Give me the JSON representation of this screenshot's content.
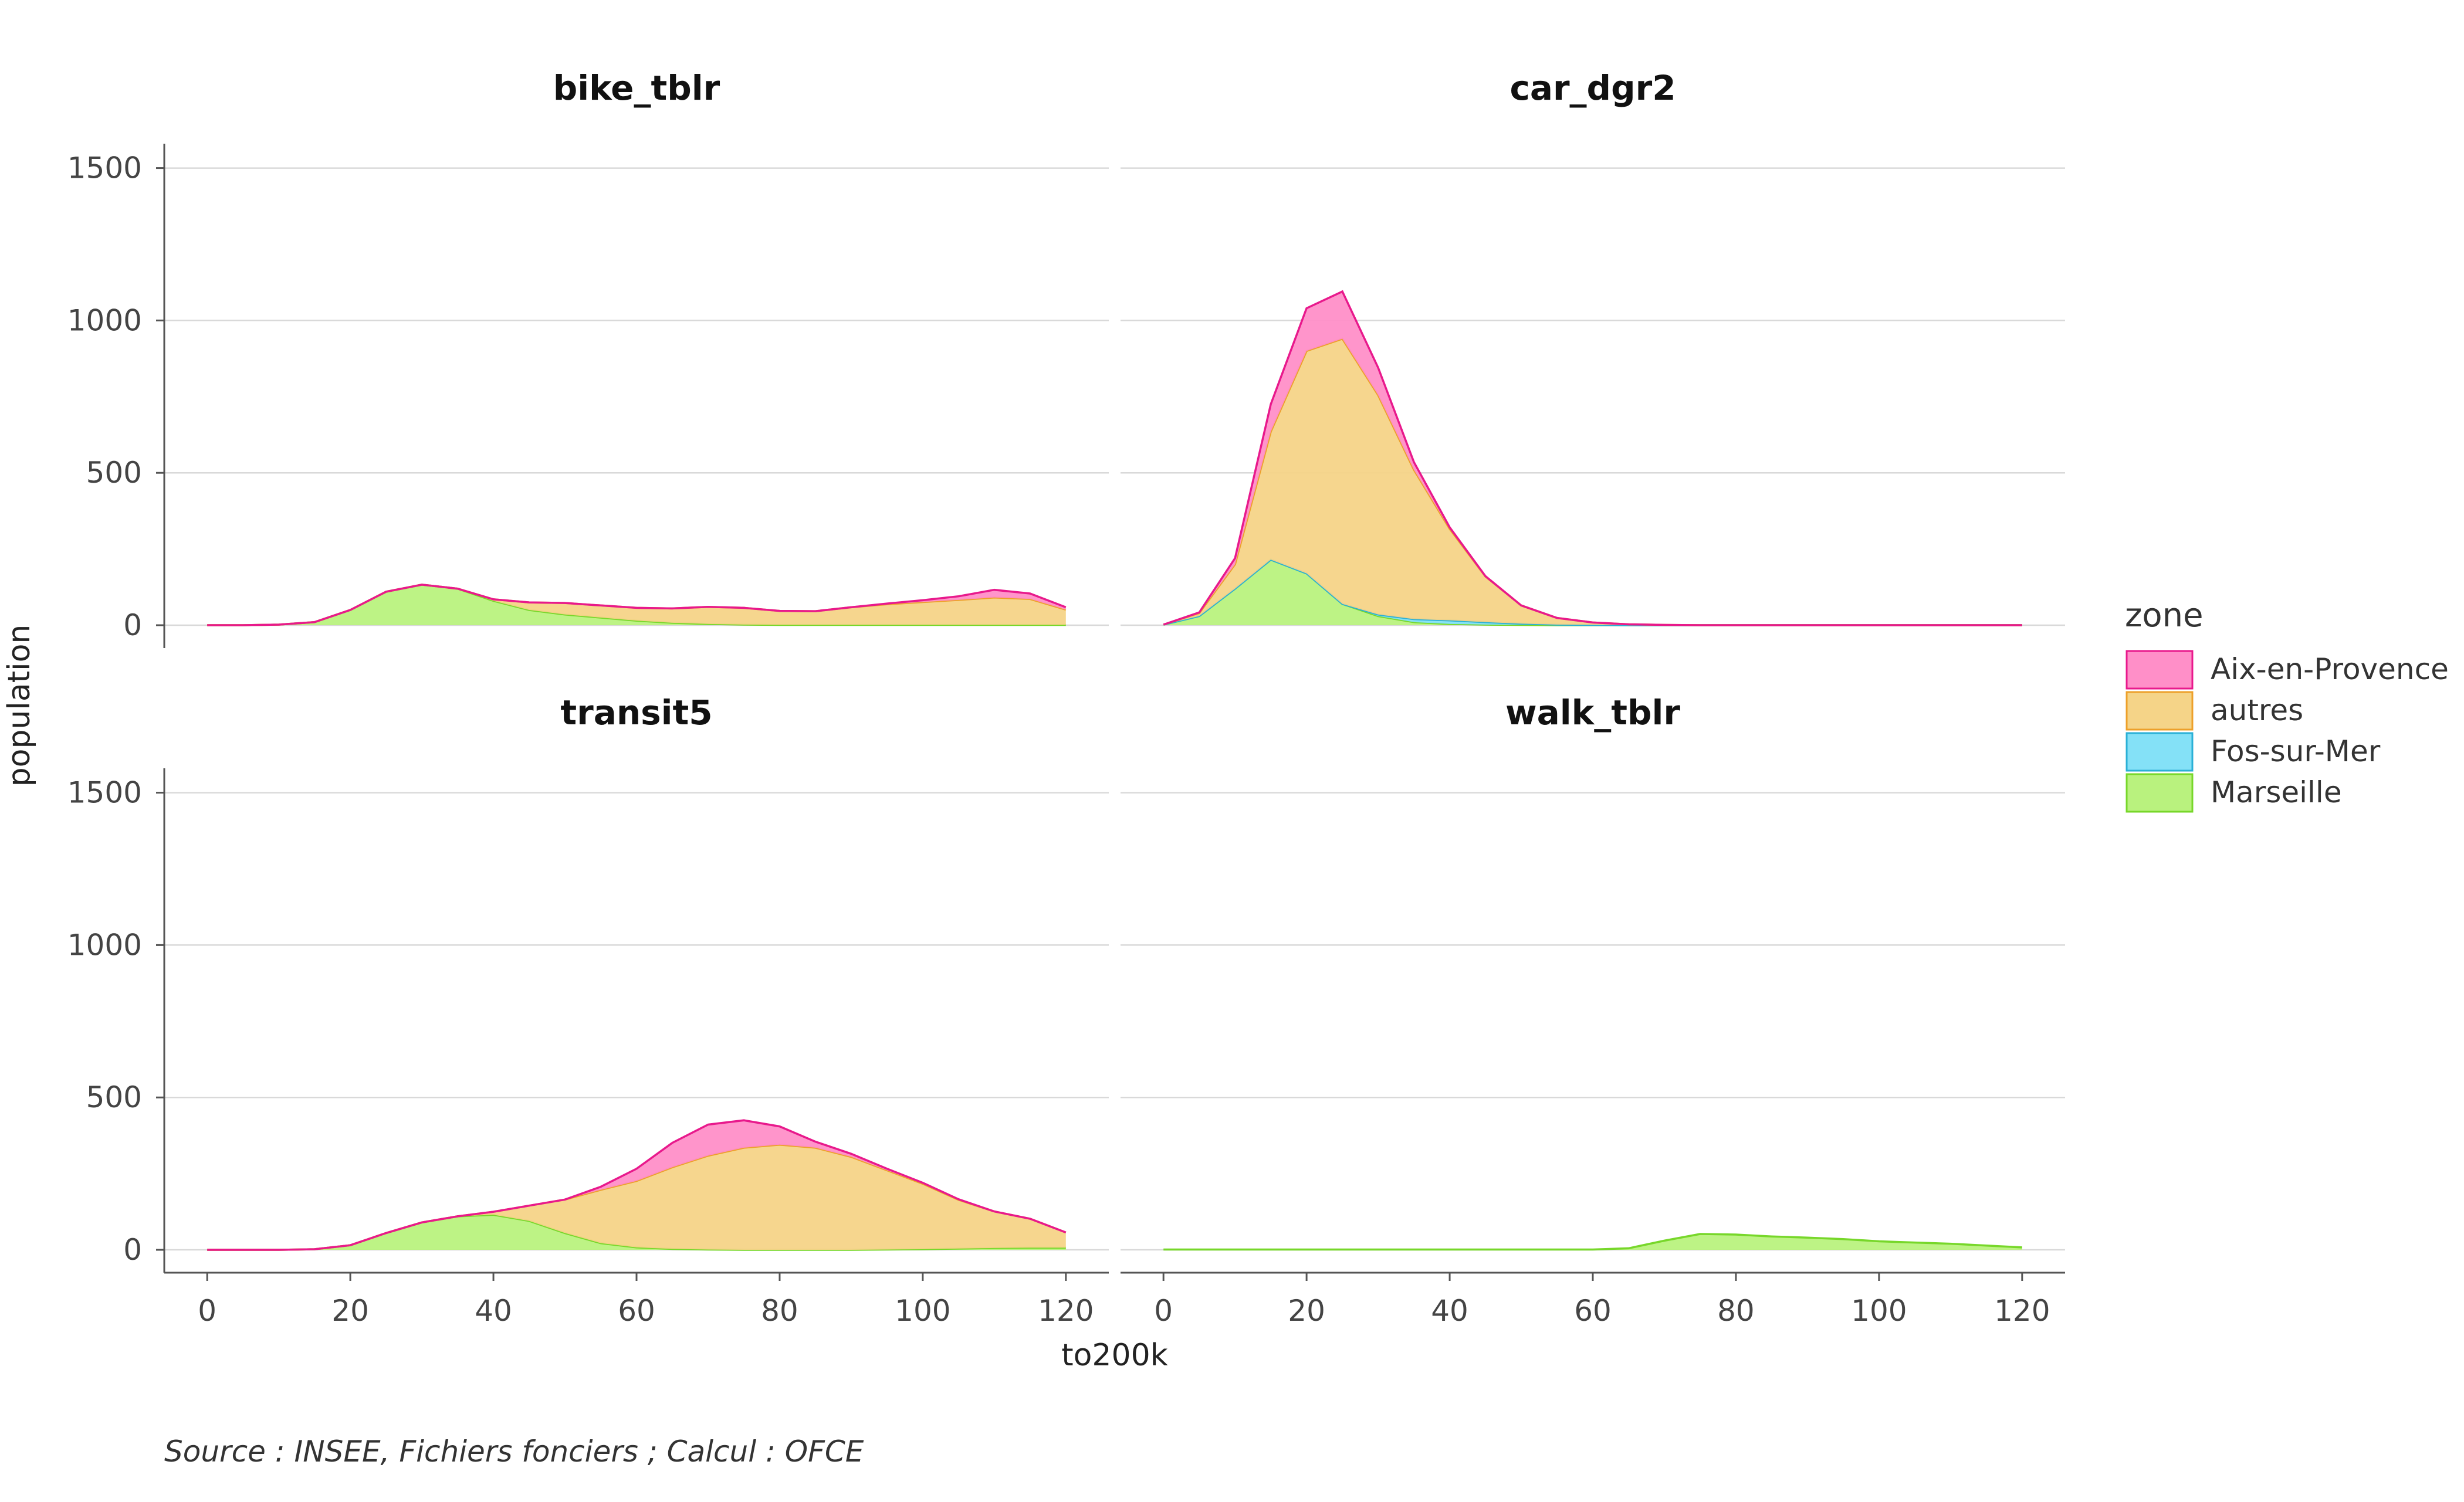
{
  "chart_data": {
    "type": "area",
    "stacked": true,
    "x_label": "to200k",
    "y_label": "population",
    "caption": "Source : INSEE, Fichiers fonciers ; Calcul : OFCE",
    "x_ticks": [
      0,
      20,
      40,
      60,
      80,
      100,
      120
    ],
    "y_ticks": [
      0,
      500,
      1000,
      1500
    ],
    "xlim": [
      -6,
      126
    ],
    "ylim": [
      -75,
      1580
    ],
    "grid": true,
    "legend": {
      "title": "zone",
      "position": "right",
      "entries": [
        {
          "name": "Aix-en-Provence",
          "fill": "#ff8fc8",
          "stroke": "#e8198c"
        },
        {
          "name": "autres",
          "fill": "#f5d488",
          "stroke": "#eda02a"
        },
        {
          "name": "Fos-sur-Mer",
          "fill": "#84e1f7",
          "stroke": "#2ab0d6"
        },
        {
          "name": "Marseille",
          "fill": "#b9f27e",
          "stroke": "#77d72a"
        }
      ]
    },
    "stack_order": [
      "Marseille",
      "Fos-sur-Mer",
      "autres",
      "Aix-en-Provence"
    ],
    "x": [
      0,
      5,
      10,
      15,
      20,
      25,
      30,
      35,
      40,
      45,
      50,
      55,
      60,
      65,
      70,
      75,
      80,
      85,
      90,
      95,
      100,
      105,
      110,
      115,
      120
    ],
    "panels": [
      {
        "title": "bike_tblr",
        "series": [
          {
            "name": "Marseille",
            "values": [
              0,
              0,
              2,
              10,
              50,
              110,
              133,
              120,
              80,
              50,
              35,
              25,
              15,
              8,
              4,
              2,
              1,
              1,
              1,
              1,
              1,
              1,
              1,
              1,
              1
            ]
          },
          {
            "name": "Fos-sur-Mer",
            "values": [
              0,
              0,
              0,
              0,
              0,
              0,
              0,
              0,
              0,
              0,
              0,
              0,
              0,
              0,
              0,
              0,
              0,
              0,
              0,
              0,
              0,
              0,
              0,
              0,
              0
            ]
          },
          {
            "name": "autres",
            "values": [
              0,
              0,
              0,
              0,
              0,
              0,
              0,
              0,
              5,
              25,
              38,
              40,
              42,
              47,
              56,
              55,
              46,
              45,
              58,
              68,
              75,
              82,
              90,
              85,
              50
            ]
          },
          {
            "name": "Aix-en-Provence",
            "values": [
              0,
              0,
              0,
              0,
              0,
              0,
              0,
              0,
              0,
              0,
              0,
              0,
              0,
              0,
              0,
              0,
              0,
              0,
              0,
              2,
              6,
              12,
              25,
              18,
              8
            ]
          }
        ]
      },
      {
        "title": "car_dgr2",
        "series": [
          {
            "name": "Marseille",
            "values": [
              2,
              30,
              120,
              215,
              170,
              70,
              30,
              10,
              4,
              2,
              1,
              0,
              0,
              0,
              0,
              0,
              0,
              0,
              0,
              0,
              0,
              0,
              0,
              0,
              0
            ]
          },
          {
            "name": "Fos-sur-Mer",
            "values": [
              0,
              0,
              0,
              0,
              0,
              0,
              5,
              10,
              12,
              8,
              4,
              2,
              1,
              0,
              0,
              0,
              0,
              0,
              0,
              0,
              0,
              0,
              0,
              0,
              0
            ]
          },
          {
            "name": "autres",
            "values": [
              0,
              10,
              80,
              420,
              730,
              870,
              720,
              490,
              300,
              150,
              60,
              22,
              8,
              3,
              1,
              0,
              0,
              0,
              0,
              0,
              0,
              0,
              0,
              0,
              0
            ]
          },
          {
            "name": "Aix-en-Provence",
            "values": [
              0,
              2,
              20,
              90,
              140,
              155,
              90,
              25,
              5,
              1,
              0,
              0,
              0,
              0,
              0,
              0,
              0,
              0,
              0,
              0,
              0,
              0,
              0,
              0,
              0
            ]
          }
        ]
      },
      {
        "title": "transit5",
        "series": [
          {
            "name": "Marseille",
            "values": [
              0,
              0,
              0,
              2,
              15,
              55,
              90,
              110,
              115,
              95,
              55,
              22,
              8,
              3,
              1,
              0,
              0,
              0,
              0,
              1,
              2,
              4,
              6,
              7,
              7
            ]
          },
          {
            "name": "Fos-sur-Mer",
            "values": [
              0,
              0,
              0,
              0,
              0,
              0,
              0,
              0,
              0,
              0,
              0,
              0,
              0,
              0,
              0,
              0,
              0,
              0,
              0,
              0,
              0,
              0,
              0,
              0,
              0
            ]
          },
          {
            "name": "autres",
            "values": [
              0,
              0,
              0,
              0,
              0,
              0,
              0,
              0,
              10,
              50,
              110,
              175,
              218,
              268,
              308,
              335,
              345,
              335,
              305,
              260,
              215,
              160,
              120,
              95,
              50
            ]
          },
          {
            "name": "Aix-en-Provence",
            "values": [
              0,
              0,
              0,
              0,
              0,
              0,
              0,
              0,
              0,
              0,
              0,
              10,
              40,
              80,
              102,
              90,
              60,
              20,
              10,
              5,
              3,
              2,
              0,
              0,
              0
            ]
          }
        ]
      },
      {
        "title": "walk_tblr",
        "series": [
          {
            "name": "Marseille",
            "values": [
              1,
              1,
              1,
              1,
              1,
              1,
              1,
              1,
              1,
              1,
              1,
              1,
              1,
              5,
              30,
              52,
              50,
              44,
              40,
              35,
              28,
              24,
              20,
              14,
              8
            ]
          },
          {
            "name": "Fos-sur-Mer",
            "values": [
              0,
              0,
              0,
              0,
              0,
              0,
              0,
              0,
              0,
              0,
              0,
              0,
              0,
              0,
              0,
              0,
              0,
              0,
              0,
              0,
              0,
              0,
              0,
              0,
              0
            ]
          },
          {
            "name": "autres",
            "values": [
              0,
              0,
              0,
              0,
              0,
              0,
              0,
              0,
              0,
              0,
              0,
              0,
              0,
              0,
              0,
              0,
              0,
              0,
              0,
              0,
              0,
              0,
              0,
              0,
              0
            ]
          },
          {
            "name": "Aix-en-Provence",
            "values": [
              0,
              0,
              0,
              0,
              0,
              0,
              0,
              0,
              0,
              0,
              0,
              0,
              0,
              0,
              0,
              0,
              0,
              0,
              0,
              0,
              0,
              0,
              0,
              0,
              0
            ]
          }
        ]
      }
    ]
  }
}
